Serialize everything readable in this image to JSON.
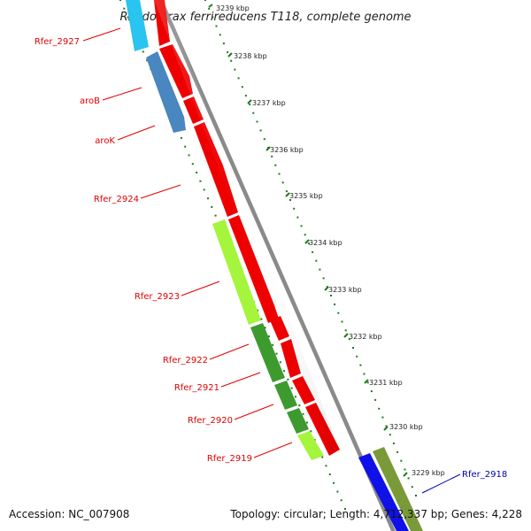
{
  "title": "Rhodoferax ferrireducens T118, complete genome",
  "footer": {
    "accession": "Accession: NC_007908",
    "summary": "Topology: circular; Length: 4,712,337 bp; Genes: 4,228"
  },
  "scale_ticks": [
    "3239 kbp",
    "3238 kbp",
    "3237 kbp",
    "3236 kbp",
    "3235 kbp",
    "3234 kbp",
    "3233 kbp",
    "3232 kbp",
    "3231 kbp",
    "3230 kbp",
    "3229 kbp"
  ],
  "gene_labels": [
    {
      "text": "Rfer_2927",
      "color": "#e00000"
    },
    {
      "text": "aroB",
      "color": "#e00000"
    },
    {
      "text": "aroK",
      "color": "#e00000"
    },
    {
      "text": "Rfer_2924",
      "color": "#e00000"
    },
    {
      "text": "Rfer_2923",
      "color": "#e00000"
    },
    {
      "text": "Rfer_2922",
      "color": "#e00000"
    },
    {
      "text": "Rfer_2921",
      "color": "#e00000"
    },
    {
      "text": "Rfer_2920",
      "color": "#e00000"
    },
    {
      "text": "Rfer_2919",
      "color": "#e00000"
    },
    {
      "text": "Rfer_2918",
      "color": "#0000b0"
    }
  ],
  "colors": {
    "cds_red": "#ee0000",
    "cds_cyan": "#29c4ef",
    "cds_steelblue": "#4a86c0",
    "cds_lime": "#a4f53c",
    "cds_green": "#3d9a2f",
    "cds_blue": "#1010e8",
    "cds_olive": "#7a9a3a",
    "backbone": "#8a8a8a",
    "tick_green": "#1e7a1e"
  }
}
